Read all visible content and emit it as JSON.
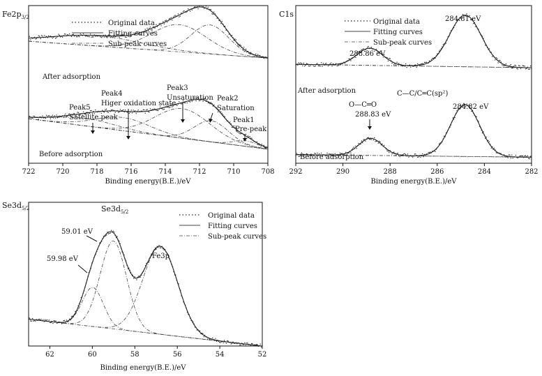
{
  "chart_data": [
    {
      "id": "fe2p",
      "type": "line",
      "title": "Fe2p3/2",
      "title_main": "Fe2p",
      "title_sub": "3/2",
      "xlabel": "Binding energy(B.E.)/eV",
      "ylabel": "",
      "xlim": [
        722,
        708
      ],
      "x_reversed": true,
      "xticks": [
        722,
        720,
        718,
        716,
        714,
        712,
        710,
        708
      ],
      "yticks": [],
      "grid": false,
      "legend": [
        "Original data",
        "Fitting curves",
        "Sub-peak curves"
      ],
      "legend_position": "top-right",
      "series": [
        {
          "name": "After adsorption",
          "baseline": [
            [
              722,
              2.6
            ],
            [
              708,
              2.24
            ]
          ],
          "peaks": [
            {
              "center": 711.4,
              "height": 0.62,
              "width": 1.1
            },
            {
              "center": 713.2,
              "height": 0.58,
              "width": 1.6
            },
            {
              "center": 718.0,
              "height": 0.22,
              "width": 2.6
            }
          ]
        },
        {
          "name": "Before adsorption",
          "baseline": [
            [
              722,
              0.95
            ],
            [
              708,
              0.3
            ]
          ],
          "peaks": [
            {
              "center": 709.3,
              "height": 0.12,
              "width": 0.7
            },
            {
              "center": 711.3,
              "height": 0.45,
              "width": 1.0
            },
            {
              "center": 713.0,
              "height": 0.63,
              "width": 1.6
            },
            {
              "center": 716.5,
              "height": 0.28,
              "width": 1.6
            },
            {
              "center": 718.7,
              "height": 0.16,
              "width": 1.8
            }
          ]
        }
      ],
      "annotations": [
        {
          "lines": [
            "Peak1",
            "Pre-peak"
          ],
          "x": 709.3
        },
        {
          "lines": [
            "Peak2",
            "Saturation"
          ],
          "x": 711.6
        },
        {
          "lines": [
            "Peak3",
            "Unsaturation"
          ],
          "x": 713.2
        },
        {
          "lines": [
            "Peak4",
            "Higer oxidation state"
          ],
          "x": 716.3
        },
        {
          "lines": [
            "Peak5",
            "Satellite peak"
          ],
          "x": 718.7
        }
      ]
    },
    {
      "id": "c1s",
      "type": "line",
      "title": "C1s",
      "xlabel": "Binding energy(B.E.)/eV",
      "ylabel": "",
      "xlim": [
        292,
        282
      ],
      "x_reversed": true,
      "xticks": [
        292,
        290,
        288,
        286,
        284,
        282
      ],
      "yticks": [],
      "grid": false,
      "legend": [
        "Original data",
        "Fitting curves",
        "Sub-peak curves"
      ],
      "legend_position": "top-right",
      "series": [
        {
          "name": "After adsorption",
          "baseline": [
            [
              292,
              2.3
            ],
            [
              282,
              2.22
            ]
          ],
          "peaks": [
            {
              "center": 284.81,
              "height": 1.2,
              "width": 0.68
            },
            {
              "center": 288.86,
              "height": 0.4,
              "width": 0.55
            }
          ]
        },
        {
          "name": "Before adsorption",
          "baseline": [
            [
              292,
              0.2
            ],
            [
              282,
              0.14
            ]
          ],
          "peaks": [
            {
              "center": 284.82,
              "height": 1.2,
              "width": 0.62
            },
            {
              "center": 288.83,
              "height": 0.4,
              "width": 0.5
            }
          ]
        }
      ],
      "annotations": [
        {
          "text": "284.81 eV",
          "x": 284.81
        },
        {
          "text": "288.86 eV",
          "x": 288.86
        },
        {
          "text": "C—C/C═C(sp²)",
          "x": 284.82
        },
        {
          "text": "284.82 eV",
          "x": 284.82
        },
        {
          "text": "O—C═O",
          "x": 288.83
        },
        {
          "text": "288.83 eV",
          "x": 288.83
        }
      ]
    },
    {
      "id": "se3d",
      "type": "line",
      "title": "Se3d5/2",
      "title_main": "Se3d",
      "title_sub": "5/2",
      "xlabel": "Binding energy(B.E.)/eV",
      "ylabel": "",
      "xlim": [
        63,
        52
      ],
      "x_reversed": true,
      "xticks": [
        62,
        60,
        58,
        56,
        54,
        52
      ],
      "yticks": [],
      "grid": false,
      "legend": [
        "Original data",
        "Fitting curves",
        "Sub-peak curves"
      ],
      "legend_position": "top-right",
      "series": [
        {
          "name": "Se3d / Fe3p",
          "baseline": [
            [
              63,
              0.22
            ],
            [
              52,
              0.0
            ]
          ],
          "peaks": [
            {
              "center": 59.98,
              "height": 0.32,
              "width": 0.5
            },
            {
              "center": 59.01,
              "height": 0.72,
              "width": 0.62
            },
            {
              "center": 56.8,
              "height": 0.72,
              "width": 0.82
            }
          ]
        }
      ],
      "annotations": [
        {
          "text": "Se3d5/2",
          "main": "Se3d",
          "sub": "5/2",
          "x": 59.0
        },
        {
          "text": "59.01 eV",
          "x": 59.01
        },
        {
          "text": "59.98 eV",
          "x": 59.98
        },
        {
          "text": "Fe3p",
          "x": 56.8
        }
      ]
    }
  ]
}
